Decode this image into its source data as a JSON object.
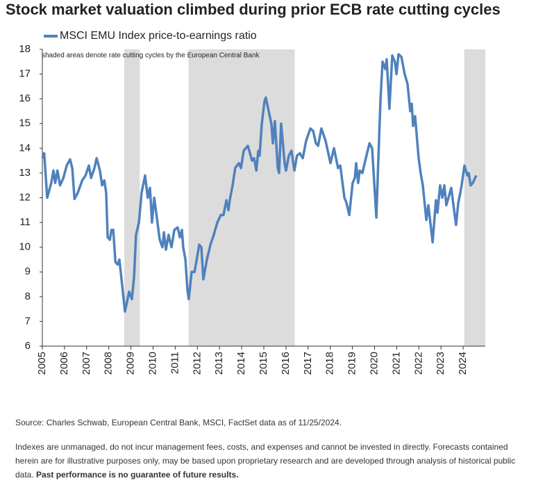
{
  "chart_data": {
    "type": "line",
    "title": "Stock market valuation climbed during prior ECB rate cutting cycles",
    "annotation": "shaded areas denote rate cutting cycles by the European Central Bank",
    "x": [
      2005.0,
      2005.08,
      2005.22,
      2005.4,
      2005.5,
      2005.58,
      2005.68,
      2005.8,
      2005.95,
      2006.1,
      2006.25,
      2006.35,
      2006.45,
      2006.6,
      2006.8,
      2006.95,
      2007.1,
      2007.2,
      2007.35,
      2007.45,
      2007.6,
      2007.7,
      2007.8,
      2007.88,
      2007.95,
      2008.05,
      2008.12,
      2008.2,
      2008.3,
      2008.4,
      2008.48,
      2008.73,
      2008.92,
      2009.04,
      2009.14,
      2009.23,
      2009.36,
      2009.48,
      2009.64,
      2009.76,
      2009.86,
      2009.95,
      2010.05,
      2010.17,
      2010.3,
      2010.42,
      2010.49,
      2010.58,
      2010.7,
      2010.83,
      2010.96,
      2011.11,
      2011.21,
      2011.3,
      2011.36,
      2011.46,
      2011.55,
      2011.61,
      2011.74,
      2011.87,
      2011.99,
      2012.08,
      2012.18,
      2012.27,
      2012.43,
      2012.59,
      2012.74,
      2012.9,
      2013.06,
      2013.18,
      2013.31,
      2013.4,
      2013.46,
      2013.59,
      2013.71,
      2013.87,
      2013.97,
      2014.09,
      2014.28,
      2014.47,
      2014.56,
      2014.66,
      2014.75,
      2014.81,
      2014.91,
      2015.03,
      2015.09,
      2015.22,
      2015.34,
      2015.41,
      2015.5,
      2015.63,
      2015.69,
      2015.78,
      2015.94,
      2016.0,
      2016.13,
      2016.25,
      2016.38,
      2016.5,
      2016.63,
      2016.76,
      2016.91,
      2017.1,
      2017.23,
      2017.35,
      2017.45,
      2017.6,
      2017.79,
      2018.01,
      2018.17,
      2018.35,
      2018.45,
      2018.64,
      2018.73,
      2018.86,
      2019.01,
      2019.11,
      2019.17,
      2019.26,
      2019.33,
      2019.45,
      2019.58,
      2019.77,
      2019.89,
      2020.08,
      2020.17,
      2020.27,
      2020.36,
      2020.49,
      2020.55,
      2020.67,
      2020.8,
      2020.92,
      2020.99,
      2021.08,
      2021.21,
      2021.36,
      2021.49,
      2021.61,
      2021.68,
      2021.74,
      2021.83,
      2021.99,
      2022.08,
      2022.18,
      2022.34,
      2022.43,
      2022.62,
      2022.77,
      2022.84,
      2022.96,
      2023.06,
      2023.15,
      2023.24,
      2023.37,
      2023.46,
      2023.62,
      2023.68,
      2023.78,
      2023.87,
      2023.93,
      2024.06,
      2024.19,
      2024.25,
      2024.34,
      2024.44,
      2024.59
    ],
    "series": [
      {
        "name": "MSCI EMU Index price-to-earnings ratio",
        "color": "#4f81bd",
        "values": [
          13.6,
          13.8,
          12.0,
          12.6,
          13.1,
          12.6,
          13.1,
          12.5,
          12.8,
          13.3,
          13.55,
          13.2,
          11.95,
          12.2,
          12.7,
          12.9,
          13.3,
          12.8,
          13.2,
          13.6,
          13.1,
          12.5,
          12.7,
          12.2,
          10.4,
          10.3,
          10.7,
          10.7,
          9.4,
          9.3,
          9.5,
          7.4,
          8.2,
          7.9,
          8.8,
          10.5,
          11.0,
          12.2,
          12.9,
          12.0,
          12.4,
          11.0,
          12.0,
          11.2,
          10.3,
          10.0,
          10.6,
          9.9,
          10.5,
          10.0,
          10.7,
          10.8,
          10.4,
          10.7,
          10.0,
          9.5,
          8.3,
          7.9,
          9.0,
          9.0,
          9.6,
          10.1,
          10.0,
          8.7,
          9.5,
          10.1,
          10.5,
          11.0,
          11.3,
          11.3,
          11.9,
          11.5,
          11.9,
          12.5,
          13.2,
          13.4,
          13.2,
          13.9,
          14.1,
          13.5,
          13.6,
          13.1,
          13.9,
          13.7,
          15.0,
          15.9,
          16.05,
          15.5,
          15.0,
          14.2,
          15.1,
          13.2,
          13.0,
          15.0,
          13.4,
          13.1,
          13.7,
          13.9,
          13.1,
          13.7,
          13.8,
          13.6,
          14.3,
          14.8,
          14.7,
          14.2,
          14.1,
          14.8,
          14.3,
          13.4,
          14.0,
          13.2,
          13.3,
          12.0,
          11.8,
          11.3,
          12.6,
          12.8,
          13.4,
          12.6,
          13.1,
          13.0,
          13.5,
          14.2,
          14.0,
          11.2,
          13.5,
          16.0,
          17.5,
          17.2,
          17.6,
          15.6,
          17.75,
          17.5,
          17.0,
          17.8,
          17.7,
          17.0,
          16.6,
          15.5,
          15.8,
          14.9,
          15.3,
          13.6,
          13.0,
          12.5,
          11.1,
          11.7,
          10.2,
          11.9,
          11.4,
          12.5,
          12.0,
          12.5,
          11.7,
          12.1,
          12.4,
          11.3,
          10.9,
          11.8,
          12.2,
          12.5,
          13.3,
          12.9,
          13.0,
          12.5,
          12.6,
          12.9
        ]
      }
    ],
    "shaded_regions": [
      [
        2008.7,
        2009.4
      ],
      [
        2011.6,
        2016.4
      ],
      [
        2024.05,
        2025
      ]
    ],
    "shade_color": "#dcdcdc",
    "xlim": [
      2005,
      2025
    ],
    "xticks": [
      2005,
      2006,
      2007,
      2008,
      2009,
      2010,
      2011,
      2012,
      2013,
      2014,
      2015,
      2016,
      2017,
      2018,
      2019,
      2020,
      2021,
      2022,
      2023,
      2024
    ],
    "ylim": [
      6,
      18
    ],
    "yticks": [
      6,
      7,
      8,
      9,
      10,
      11,
      12,
      13,
      14,
      15,
      16,
      17,
      18
    ],
    "grid": false,
    "legend": "top-left"
  },
  "footer": {
    "source": "Source: Charles Schwab, European Central Bank, MSCI, FactSet data as of 11/25/2024.",
    "disclaimer": "Indexes are unmanaged, do not incur management fees, costs, and expenses and cannot be invested in directly. Forecasts contained herein are for illustrative purposes only, may be based upon proprietary research and are developed through analysis of historical public data.",
    "disclaimer_bold": "Past performance is no guarantee of future results."
  }
}
